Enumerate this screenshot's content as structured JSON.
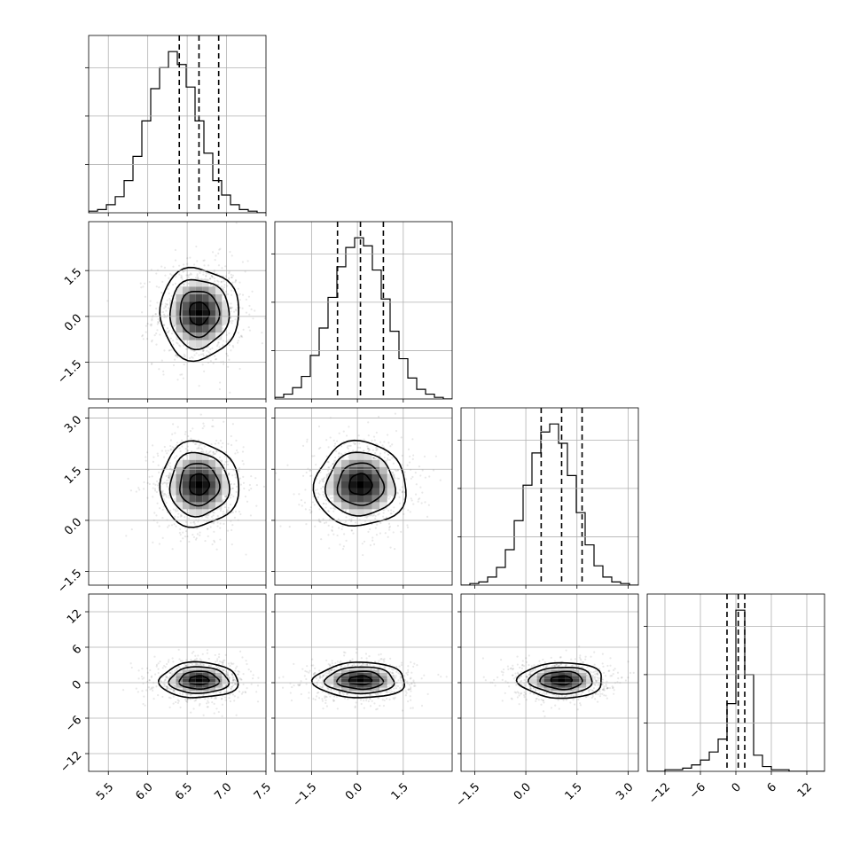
{
  "chart_data": {
    "type": "corner",
    "grid": true,
    "quantiles": [
      0.16,
      0.5,
      0.84
    ],
    "parameters": [
      {
        "mean": 6.65,
        "sd": 0.25,
        "range": [
          5.25,
          7.5
        ],
        "ticks": [
          5.5,
          6.0,
          6.5,
          7.0,
          7.5
        ],
        "tick_labels": [
          "5.5",
          "6.0",
          "6.5",
          "7.0",
          "7.5"
        ],
        "quantile_values": [
          6.4,
          6.65,
          6.9
        ],
        "hist": [
          0.01,
          0.02,
          0.05,
          0.1,
          0.2,
          0.35,
          0.57,
          0.77,
          0.9,
          1.0,
          0.92,
          0.78,
          0.57,
          0.37,
          0.2,
          0.11,
          0.05,
          0.02,
          0.01,
          0.0
        ]
      },
      {
        "mean": 0.1,
        "sd": 0.75,
        "range": [
          -2.7,
          3.1
        ],
        "ticks": [
          -1.5,
          0.0,
          1.5
        ],
        "tick_labels": [
          "−1.5",
          "0.0",
          "1.5"
        ],
        "quantile_values": [
          -0.65,
          0.1,
          0.85
        ],
        "hist": [
          0.01,
          0.03,
          0.07,
          0.14,
          0.27,
          0.44,
          0.63,
          0.82,
          0.94,
          1.0,
          0.95,
          0.8,
          0.62,
          0.42,
          0.25,
          0.13,
          0.06,
          0.03,
          0.01,
          0.0
        ]
      },
      {
        "mean": 1.05,
        "sd": 0.62,
        "range": [
          -1.9,
          3.3
        ],
        "ticks": [
          -1.5,
          0.0,
          1.5,
          3.0
        ],
        "tick_labels": [
          "−1.5",
          "0.0",
          "1.5",
          "3.0"
        ],
        "quantile_values": [
          0.45,
          1.05,
          1.65
        ],
        "hist": [
          0.0,
          0.01,
          0.02,
          0.05,
          0.11,
          0.22,
          0.4,
          0.62,
          0.82,
          0.95,
          1.0,
          0.88,
          0.68,
          0.45,
          0.25,
          0.12,
          0.05,
          0.02,
          0.01,
          0.0
        ]
      },
      {
        "mean": 0.4,
        "sd": 1.5,
        "range": [
          -15,
          15
        ],
        "ticks": [
          -12,
          -6,
          0,
          6,
          12
        ],
        "tick_labels": [
          "−12",
          "−6",
          "0",
          "6",
          "12"
        ],
        "quantile_values": [
          -1.5,
          0.4,
          1.5
        ],
        "hist": [
          0.0,
          0.0,
          0.01,
          0.01,
          0.02,
          0.04,
          0.07,
          0.12,
          0.2,
          0.42,
          1.0,
          0.6,
          0.1,
          0.03,
          0.01,
          0.01,
          0.0,
          0.0,
          0.0,
          0.0
        ]
      }
    ]
  }
}
